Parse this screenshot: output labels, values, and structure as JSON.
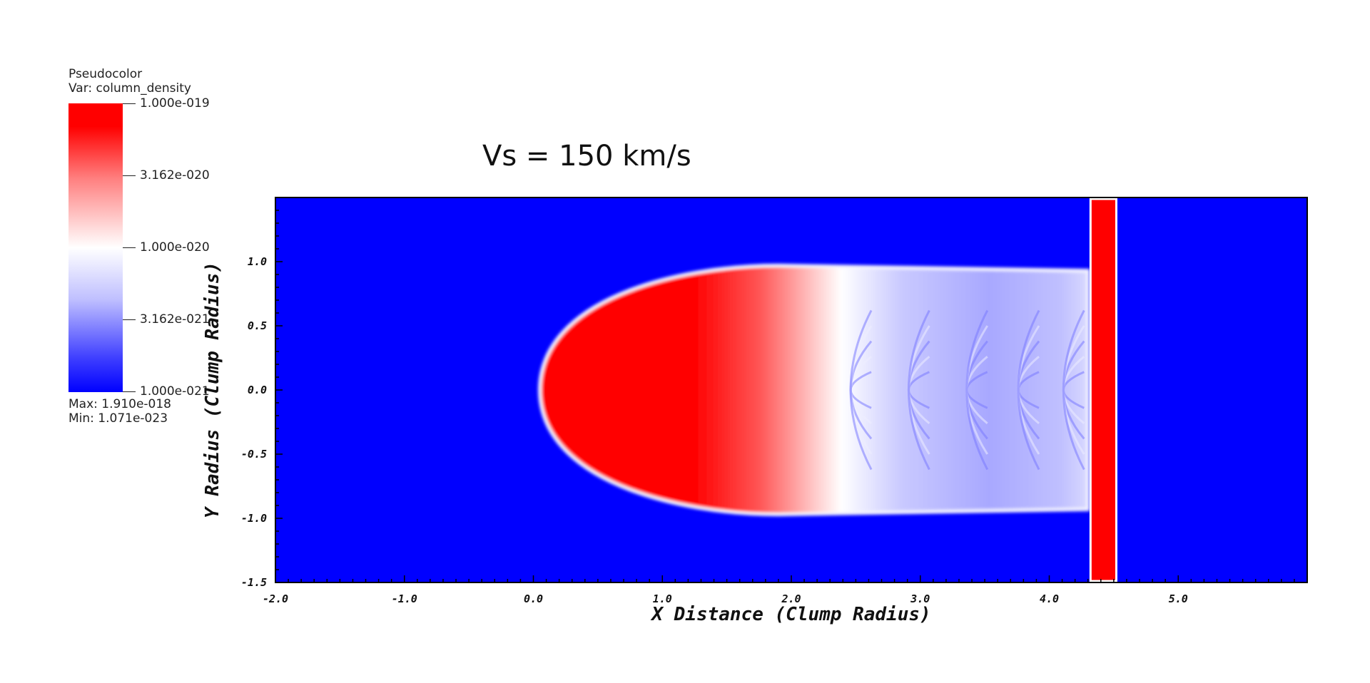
{
  "legend": {
    "plot_type": "Pseudocolor",
    "variable": "Var: column_density",
    "max_text": "Max:  1.910e-018",
    "min_text": "Min:  1.071e-023",
    "tick_labels": [
      "1.000e-019",
      "3.162e-020",
      "1.000e-020",
      "3.162e-021",
      "1.000e-021"
    ]
  },
  "chart_data": {
    "type": "heatmap",
    "title": "Vs = 150 km/s",
    "xlabel": "X Distance (Clump Radius)",
    "ylabel": "Y Radius (Clump Radius)",
    "xlim": [
      -2.0,
      6.0
    ],
    "ylim": [
      -1.5,
      1.5
    ],
    "x_ticks": [
      "-2.0",
      "-1.0",
      "0.0",
      "1.0",
      "2.0",
      "3.0",
      "4.0",
      "5.0"
    ],
    "y_ticks": [
      "-1.5",
      "-1.0",
      "-0.5",
      "0.0",
      "0.5",
      "1.0"
    ],
    "colorscale": {
      "scale": "log",
      "min": 1e-21,
      "max": 1e-19,
      "colors": [
        "#0000ff",
        "#ffffff",
        "#ff0000"
      ]
    },
    "features": {
      "clump_head_x": 0.05,
      "clump_half_width": 0.97,
      "clump_tail_x": 4.3,
      "shock_x_range": [
        4.32,
        4.52
      ]
    }
  }
}
